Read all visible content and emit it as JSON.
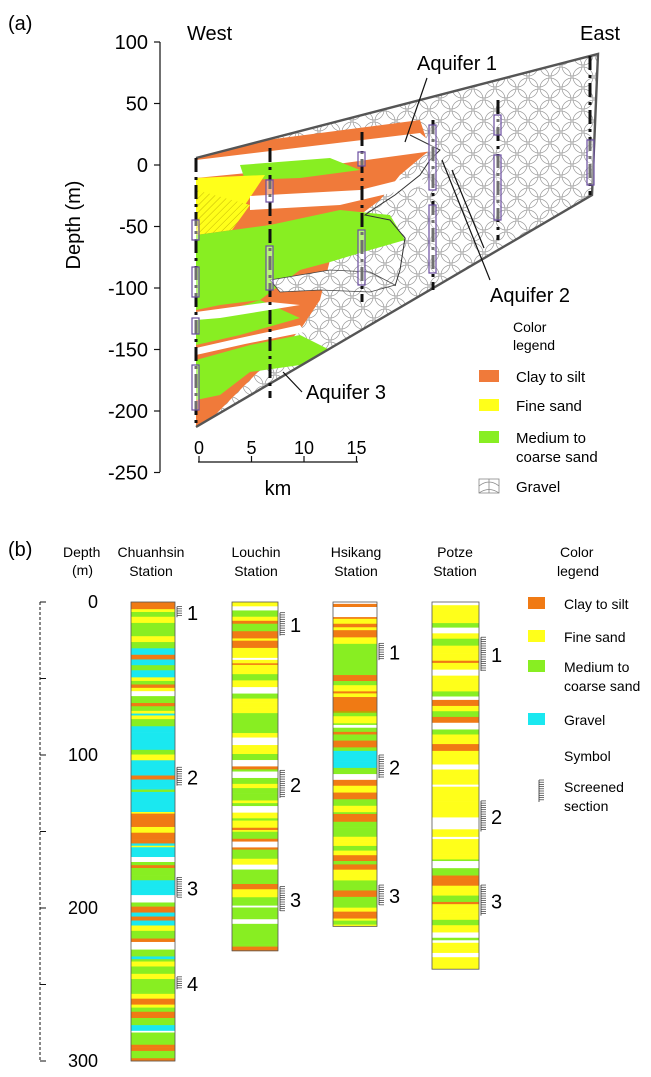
{
  "panel_a": {
    "label": "(a)",
    "west_label": "West",
    "east_label": "East",
    "ylabel": "Depth (m)",
    "yticks": [
      "100",
      "50",
      "0",
      "-50",
      "-100",
      "-150",
      "-200",
      "-250"
    ],
    "xticks": [
      "0",
      "5",
      "10",
      "15"
    ],
    "xunit": "km",
    "aquifer_labels": [
      "Aquifer 1",
      "Aquifer 2",
      "Aquifer 3"
    ],
    "legend": {
      "title_line1": "Color",
      "title_line2": "legend",
      "items": [
        {
          "label": "Clay to silt",
          "color": "#f07a3a"
        },
        {
          "label": "Fine sand",
          "color": "#ffff1a"
        },
        {
          "label_line1": "Medium to",
          "label_line2": "coarse sand",
          "color": "#88ee22"
        },
        {
          "label": "Gravel",
          "color": "#ffffff"
        }
      ]
    }
  },
  "panel_b": {
    "label": "(b)",
    "depth_header_line1": "Depth",
    "depth_header_line2": "(m)",
    "depth_ticks": [
      "0",
      "100",
      "200",
      "300"
    ],
    "stations": [
      {
        "name_line1": "Chuanhsin",
        "name_line2": "Station",
        "screen_numbers": [
          "1",
          "2",
          "3",
          "4"
        ]
      },
      {
        "name_line1": "Louchin",
        "name_line2": "Station",
        "screen_numbers": [
          "1",
          "2",
          "3"
        ]
      },
      {
        "name_line1": "Hsikang",
        "name_line2": "Station",
        "screen_numbers": [
          "1",
          "2",
          "3"
        ]
      },
      {
        "name_line1": "Potze",
        "name_line2": "Station",
        "screen_numbers": [
          "1",
          "2",
          "3"
        ]
      }
    ],
    "legend": {
      "title_line1": "Color",
      "title_line2": "legend",
      "items": [
        {
          "label": "Clay to silt",
          "color": "#f07a14"
        },
        {
          "label": "Fine sand",
          "color": "#ffff1a"
        },
        {
          "label_line1": "Medium to",
          "label_line2": "coarse sand",
          "color": "#88ee22"
        },
        {
          "label": "Gravel",
          "color": "#1ae8f0"
        }
      ],
      "symbol_title": "Symbol",
      "symbol_label_line1": "Screened",
      "symbol_label_line2": "section"
    }
  }
}
